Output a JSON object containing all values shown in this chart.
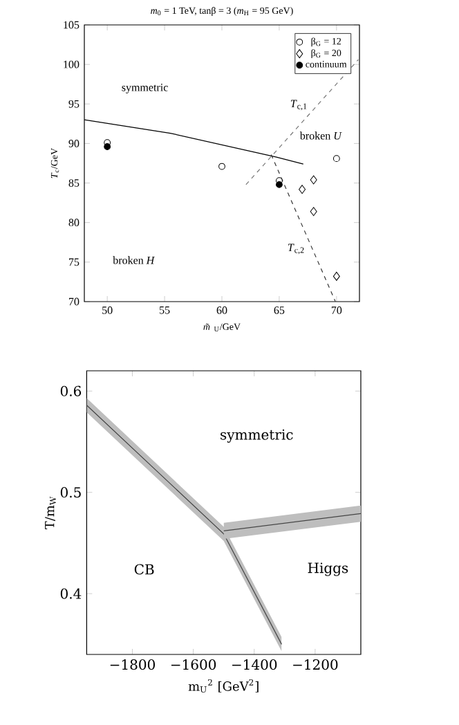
{
  "chart_data": [
    {
      "type": "scatter",
      "title": "*m*$_{0}$ = 1 TeV, tanβ = 3 (*m*$_{H}$ = 95 GeV)",
      "xlabel": "*m̃*$_{U}$/GeV",
      "ylabel": "*T*$_{c}$/GeV",
      "xlim": [
        48,
        72
      ],
      "ylim": [
        70,
        105
      ],
      "xticks": [
        50,
        55,
        60,
        65,
        70
      ],
      "yticks": [
        70,
        75,
        80,
        85,
        90,
        95,
        100,
        105
      ],
      "legend": "top right",
      "series": [
        {
          "name": "β$_{G}$ = 12",
          "marker": "circle",
          "color": "#ffffff",
          "x": [
            50,
            60,
            65,
            70
          ],
          "values": [
            90.1,
            87.1,
            85.3,
            88.1
          ]
        },
        {
          "name": "β$_{G}$ = 20",
          "marker": "diamond",
          "color": "#000000",
          "x": [
            67,
            68,
            68,
            70
          ],
          "values": [
            84.2,
            85.4,
            81.4,
            73.2
          ]
        },
        {
          "name": "continuum",
          "marker": "circle",
          "color": "#000000",
          "x": [
            50,
            65
          ],
          "values": [
            89.6,
            84.8
          ]
        },
        {
          "type": "line",
          "line_style": "solid",
          "color": "#000000",
          "x": [
            48,
            55.5,
            64.7,
            67.1
          ],
          "values": [
            93,
            91.3,
            88.3,
            87.4
          ]
        },
        {
          "type": "line",
          "line_style": "dashed",
          "color": "#777777",
          "x": [
            62.1,
            71.9
          ],
          "values": [
            84.8,
            100.6
          ]
        },
        {
          "type": "line",
          "line_style": "dashed",
          "color": "#333333",
          "x": [
            64.3,
            69.9
          ],
          "values": [
            88.6,
            70
          ]
        }
      ],
      "annotations": [
        "symmetric",
        "*T*$_{c,1}$",
        "broken *U*",
        "*T*$_{c,2}$",
        "broken *H*"
      ]
    },
    {
      "type": "line",
      "xlabel": "m$_{U}$$^{2}$ [GeV$^{2}$]",
      "ylabel": "T/m$_{W}$",
      "xlim": [
        -1950,
        -1050
      ],
      "ylim": [
        0.34,
        0.62
      ],
      "xticks": [
        {
          "value": -1800,
          "label": "−1800"
        },
        {
          "value": -1600,
          "label": "−1600"
        },
        {
          "value": -1400,
          "label": "−1400"
        },
        {
          "value": -1200,
          "label": "−1200"
        }
      ],
      "yticks": [
        0.4,
        0.5,
        0.6
      ],
      "series": [
        {
          "color": "#444444",
          "x": [
            -1950,
            -1500,
            -1310
          ],
          "values": [
            0.586,
            0.459,
            0.35
          ],
          "lower": [
            0.579,
            0.452,
            0.343
          ],
          "upper": [
            0.593,
            0.466,
            0.357
          ]
        },
        {
          "color": "#444444",
          "x": [
            -1500,
            -1050
          ],
          "values": [
            0.462,
            0.479
          ],
          "lower": [
            0.454,
            0.471
          ],
          "upper": [
            0.47,
            0.487
          ]
        }
      ],
      "annotations": [
        "symmetric",
        "CB",
        "Higgs"
      ]
    }
  ]
}
